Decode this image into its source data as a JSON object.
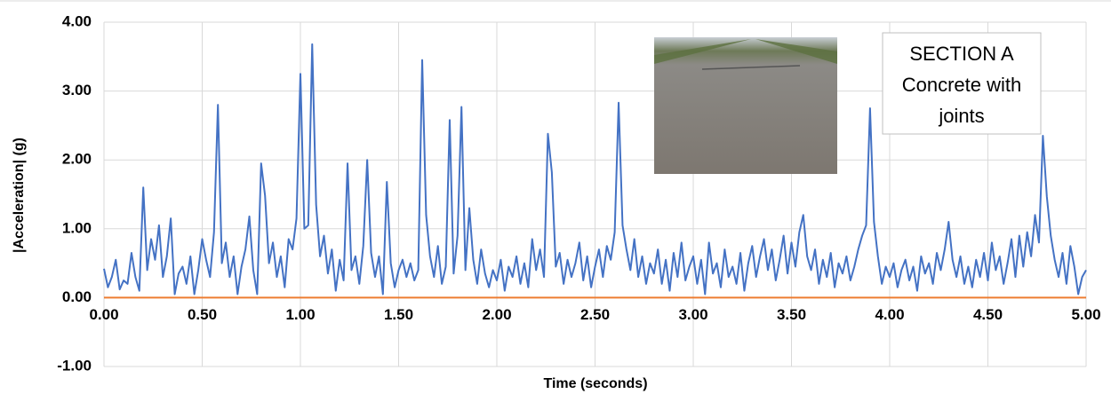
{
  "chart_data": {
    "type": "line",
    "x_label": "Time (seconds)",
    "y_label": "|Acceleration| (g)",
    "annotation": [
      "SECTION A",
      "Concrete with",
      "joints"
    ],
    "xlim": [
      0,
      5
    ],
    "ylim": [
      -1,
      4
    ],
    "xticks": [
      {
        "value": 0,
        "label": "0.00"
      },
      {
        "value": 0.5,
        "label": "0.50"
      },
      {
        "value": 1,
        "label": "1.00"
      },
      {
        "value": 1.5,
        "label": "1.50"
      },
      {
        "value": 2,
        "label": "2.00"
      },
      {
        "value": 2.5,
        "label": "2.50"
      },
      {
        "value": 3,
        "label": "3.00"
      },
      {
        "value": 3.5,
        "label": "3.50"
      },
      {
        "value": 4,
        "label": "4.00"
      },
      {
        "value": 4.5,
        "label": "4.50"
      },
      {
        "value": 5,
        "label": "5.00"
      }
    ],
    "yticks": [
      {
        "value": -1,
        "label": "-1.00"
      },
      {
        "value": 0,
        "label": "0.00"
      },
      {
        "value": 1,
        "label": "1.00"
      },
      {
        "value": 2,
        "label": "2.00"
      },
      {
        "value": 3,
        "label": "3.00"
      },
      {
        "value": 4,
        "label": "4.00"
      }
    ],
    "grid": true,
    "zero_line_color": "#ed7d31",
    "x": [
      0,
      0.02,
      0.04,
      0.06,
      0.08,
      0.1,
      0.12,
      0.14,
      0.16,
      0.18,
      0.2,
      0.22,
      0.24,
      0.26,
      0.28,
      0.3,
      0.32,
      0.34,
      0.36,
      0.38,
      0.4,
      0.42,
      0.44,
      0.46,
      0.48,
      0.5,
      0.52,
      0.54,
      0.56,
      0.58,
      0.6,
      0.62,
      0.64,
      0.66,
      0.68,
      0.7,
      0.72,
      0.74,
      0.76,
      0.78,
      0.8,
      0.82,
      0.84,
      0.86,
      0.88,
      0.9,
      0.92,
      0.94,
      0.96,
      0.98,
      1,
      1.02,
      1.04,
      1.06,
      1.08,
      1.1,
      1.12,
      1.14,
      1.16,
      1.18,
      1.2,
      1.22,
      1.24,
      1.26,
      1.28,
      1.3,
      1.32,
      1.34,
      1.36,
      1.38,
      1.4,
      1.42,
      1.44,
      1.46,
      1.48,
      1.5,
      1.52,
      1.54,
      1.56,
      1.58,
      1.6,
      1.62,
      1.64,
      1.66,
      1.68,
      1.7,
      1.72,
      1.74,
      1.76,
      1.78,
      1.8,
      1.82,
      1.84,
      1.86,
      1.88,
      1.9,
      1.92,
      1.94,
      1.96,
      1.98,
      2,
      2.02,
      2.04,
      2.06,
      2.08,
      2.1,
      2.12,
      2.14,
      2.16,
      2.18,
      2.2,
      2.22,
      2.24,
      2.26,
      2.28,
      2.3,
      2.32,
      2.34,
      2.36,
      2.38,
      2.4,
      2.42,
      2.44,
      2.46,
      2.48,
      2.5,
      2.52,
      2.54,
      2.56,
      2.58,
      2.6,
      2.62,
      2.64,
      2.66,
      2.68,
      2.7,
      2.72,
      2.74,
      2.76,
      2.78,
      2.8,
      2.82,
      2.84,
      2.86,
      2.88,
      2.9,
      2.92,
      2.94,
      2.96,
      2.98,
      3,
      3.02,
      3.04,
      3.06,
      3.08,
      3.1,
      3.12,
      3.14,
      3.16,
      3.18,
      3.2,
      3.22,
      3.24,
      3.26,
      3.28,
      3.3,
      3.32,
      3.34,
      3.36,
      3.38,
      3.4,
      3.42,
      3.44,
      3.46,
      3.48,
      3.5,
      3.52,
      3.54,
      3.56,
      3.58,
      3.6,
      3.62,
      3.64,
      3.66,
      3.68,
      3.7,
      3.72,
      3.74,
      3.76,
      3.78,
      3.8,
      3.82,
      3.84,
      3.86,
      3.88,
      3.9,
      3.92,
      3.94,
      3.96,
      3.98,
      4,
      4.02,
      4.04,
      4.06,
      4.08,
      4.1,
      4.12,
      4.14,
      4.16,
      4.18,
      4.2,
      4.22,
      4.24,
      4.26,
      4.28,
      4.3,
      4.32,
      4.34,
      4.36,
      4.38,
      4.4,
      4.42,
      4.44,
      4.46,
      4.48,
      4.5,
      4.52,
      4.54,
      4.56,
      4.58,
      4.6,
      4.62,
      4.64,
      4.66,
      4.68,
      4.7,
      4.72,
      4.74,
      4.76,
      4.78,
      4.8,
      4.82,
      4.84,
      4.86,
      4.88,
      4.9,
      4.92,
      4.94,
      4.96,
      4.98,
      5
    ],
    "series": [
      {
        "color": "#4472c4",
        "values": [
          0.42,
          0.15,
          0.3,
          0.55,
          0.12,
          0.25,
          0.2,
          0.65,
          0.3,
          0.1,
          1.6,
          0.4,
          0.85,
          0.55,
          1.05,
          0.3,
          0.6,
          1.15,
          0.05,
          0.35,
          0.45,
          0.2,
          0.6,
          0.05,
          0.4,
          0.85,
          0.55,
          0.3,
          0.95,
          2.8,
          0.5,
          0.8,
          0.3,
          0.6,
          0.05,
          0.45,
          0.7,
          1.18,
          0.4,
          0.05,
          1.95,
          1.48,
          0.5,
          0.8,
          0.3,
          0.6,
          0.15,
          0.85,
          0.7,
          1.15,
          3.25,
          1.0,
          1.05,
          3.68,
          1.35,
          0.6,
          0.9,
          0.35,
          0.7,
          0.1,
          0.55,
          0.25,
          1.95,
          0.4,
          0.6,
          0.2,
          0.75,
          2.0,
          0.65,
          0.3,
          0.6,
          0.05,
          1.68,
          0.5,
          0.15,
          0.4,
          0.55,
          0.3,
          0.5,
          0.25,
          0.4,
          3.45,
          1.2,
          0.6,
          0.3,
          0.75,
          0.2,
          0.45,
          2.58,
          0.35,
          0.9,
          2.77,
          0.4,
          1.3,
          0.55,
          0.2,
          0.7,
          0.35,
          0.15,
          0.4,
          0.25,
          0.55,
          0.1,
          0.45,
          0.3,
          0.6,
          0.2,
          0.5,
          0.15,
          0.85,
          0.4,
          0.7,
          0.3,
          2.38,
          1.82,
          0.45,
          0.65,
          0.2,
          0.55,
          0.3,
          0.5,
          0.8,
          0.25,
          0.6,
          0.15,
          0.45,
          0.7,
          0.3,
          0.75,
          0.55,
          0.95,
          2.83,
          1.05,
          0.7,
          0.4,
          0.85,
          0.3,
          0.6,
          0.2,
          0.5,
          0.35,
          0.7,
          0.2,
          0.55,
          0.1,
          0.65,
          0.3,
          0.8,
          0.25,
          0.45,
          0.6,
          0.2,
          0.55,
          0.05,
          0.8,
          0.35,
          0.5,
          0.15,
          0.7,
          0.3,
          0.45,
          0.2,
          0.65,
          0.1,
          0.5,
          0.75,
          0.3,
          0.6,
          0.85,
          0.4,
          0.7,
          0.25,
          0.55,
          0.9,
          0.35,
          0.8,
          0.45,
          0.95,
          1.2,
          0.6,
          0.4,
          0.7,
          0.2,
          0.55,
          0.3,
          0.65,
          0.15,
          0.5,
          0.35,
          0.6,
          0.25,
          0.45,
          0.7,
          0.9,
          1.05,
          2.75,
          1.1,
          0.6,
          0.2,
          0.45,
          0.3,
          0.5,
          0.15,
          0.4,
          0.55,
          0.25,
          0.45,
          0.1,
          0.6,
          0.35,
          0.5,
          0.2,
          0.65,
          0.4,
          0.7,
          1.1,
          0.55,
          0.3,
          0.6,
          0.2,
          0.45,
          0.15,
          0.55,
          0.3,
          0.65,
          0.25,
          0.8,
          0.4,
          0.6,
          0.2,
          0.5,
          0.85,
          0.3,
          0.9,
          0.45,
          0.95,
          0.6,
          1.2,
          0.8,
          2.35,
          1.47,
          0.9,
          0.55,
          0.3,
          0.65,
          0.2,
          0.75,
          0.45,
          0.05,
          0.3,
          0.4
        ]
      }
    ]
  }
}
